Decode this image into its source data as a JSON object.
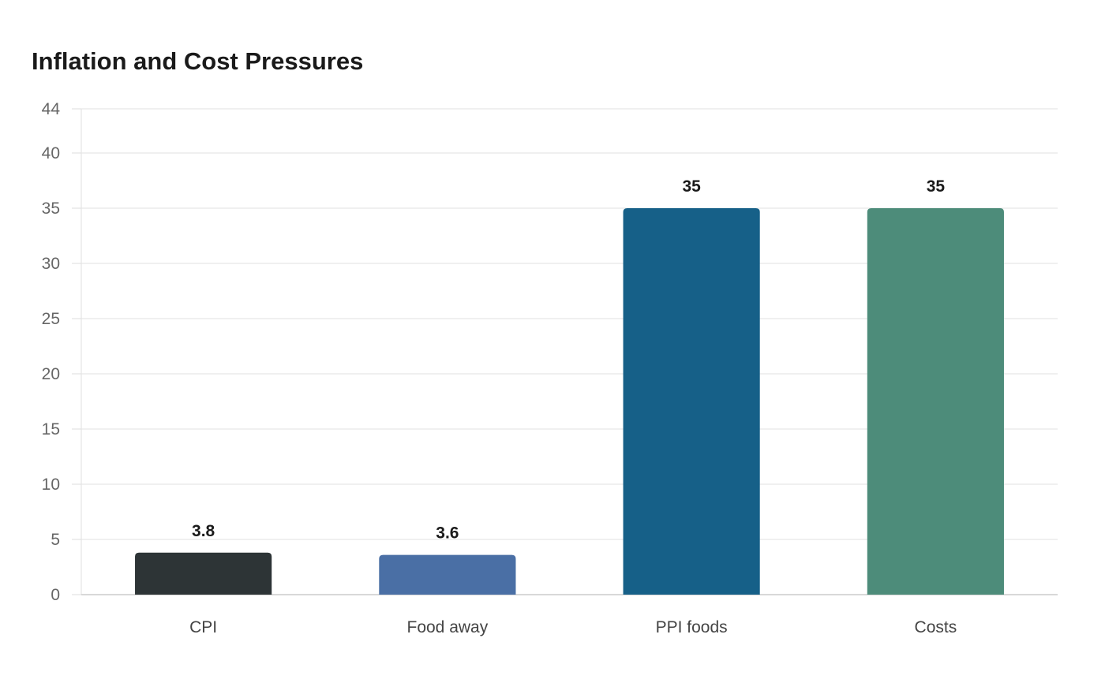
{
  "chart_data": {
    "type": "bar",
    "title": "Inflation and Cost Pressures",
    "xlabel": "",
    "ylabel": "",
    "categories": [
      "CPI",
      "Food away",
      "PPI foods",
      "Costs"
    ],
    "values": [
      3.8,
      3.6,
      35,
      35
    ],
    "value_labels": [
      "3.8",
      "3.6",
      "35",
      "35"
    ],
    "colors": [
      "#2d3436",
      "#4a6fa5",
      "#166088",
      "#4d8c7a"
    ],
    "ylim": [
      0,
      44
    ],
    "yticks": [
      0,
      5,
      10,
      15,
      20,
      25,
      30,
      35,
      40,
      44
    ],
    "grid": true,
    "legend": "none"
  }
}
